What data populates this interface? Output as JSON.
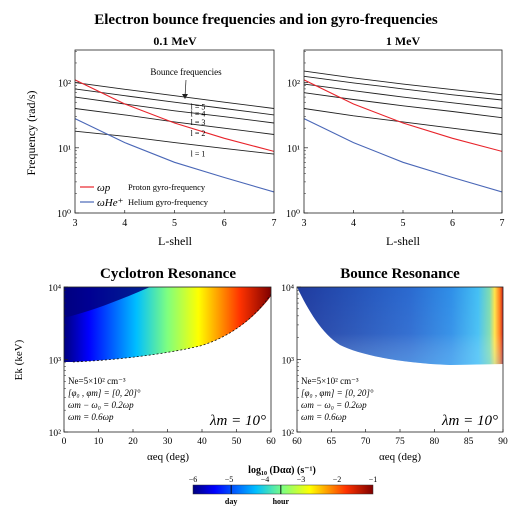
{
  "title": "Electron bounce frequencies and ion gyro-frequencies",
  "colors": {
    "bounce": "#222222",
    "proton": "#e8242b",
    "helium": "#4a67b7"
  },
  "chart_data": [
    {
      "id": "top-left",
      "type": "line",
      "title": "0.1 MeV",
      "xlabel": "L-shell",
      "ylabel": "Frequency (rad/s)",
      "xlim": [
        3,
        7
      ],
      "ylim_log10": [
        0,
        2.5
      ],
      "x_ticks": [
        "3",
        "4",
        "5",
        "6",
        "7"
      ],
      "y_ticks": [
        "10⁰",
        "10¹",
        "10²"
      ],
      "annotation": "Bounce frequencies",
      "x": [
        3,
        4,
        5,
        6,
        7
      ],
      "series": [
        {
          "name": "l = 5",
          "kind": "bounce",
          "values": [
            100,
            79,
            63,
            50,
            40
          ]
        },
        {
          "name": "l = 4",
          "kind": "bounce",
          "values": [
            80,
            63,
            50,
            40,
            32
          ]
        },
        {
          "name": "l = 3",
          "kind": "bounce",
          "values": [
            60,
            47,
            37,
            30,
            24
          ]
        },
        {
          "name": "l = 2",
          "kind": "bounce",
          "values": [
            40,
            32,
            25,
            20,
            16
          ]
        },
        {
          "name": "l = 1",
          "kind": "bounce",
          "values": [
            18,
            15,
            12,
            9.8,
            8
          ]
        },
        {
          "name": "Proton gyro-frequency",
          "symbol": "ω_p",
          "kind": "proton",
          "values": [
            110,
            47,
            24,
            14,
            8.8
          ]
        },
        {
          "name": "Helium gyro-frequency",
          "symbol": "ω_He⁺",
          "kind": "helium",
          "values": [
            28,
            12,
            6,
            3.5,
            2.1
          ]
        }
      ],
      "legend": [
        {
          "symbol": "ωp",
          "label": "Proton gyro-frequency",
          "kind": "proton"
        },
        {
          "symbol": "ωHe⁺",
          "label": "Helium gyro-frequency",
          "kind": "helium"
        }
      ]
    },
    {
      "id": "top-right",
      "type": "line",
      "title": "1 MeV",
      "xlabel": "L-shell",
      "xlim": [
        3,
        7
      ],
      "ylim_log10": [
        0,
        2.5
      ],
      "x_ticks": [
        "3",
        "4",
        "5",
        "6",
        "7"
      ],
      "y_ticks": [
        "10⁰",
        "10¹",
        "10²"
      ],
      "x": [
        3,
        4,
        5,
        6,
        7
      ],
      "series": [
        {
          "name": "l = 5",
          "kind": "bounce",
          "values": [
            150,
            118,
            95,
            78,
            65
          ]
        },
        {
          "name": "l = 4",
          "kind": "bounce",
          "values": [
            125,
            99,
            80,
            65,
            54
          ]
        },
        {
          "name": "l = 3",
          "kind": "bounce",
          "values": [
            95,
            75,
            60,
            49,
            40
          ]
        },
        {
          "name": "l = 2",
          "kind": "bounce",
          "values": [
            70,
            55,
            44,
            36,
            29
          ]
        },
        {
          "name": "l = 1",
          "kind": "bounce",
          "values": [
            40,
            31,
            25,
            20,
            16
          ]
        },
        {
          "name": "Proton gyro-frequency",
          "kind": "proton",
          "values": [
            110,
            47,
            24,
            14,
            8.8
          ]
        },
        {
          "name": "Helium gyro-frequency",
          "kind": "helium",
          "values": [
            28,
            12,
            6,
            3.5,
            2.1
          ]
        }
      ]
    },
    {
      "id": "bottom-left",
      "type": "heatmap",
      "title": "Cyclotron Resonance",
      "xlabel": "αeq (deg)",
      "ylabel": "Ek (keV)",
      "xlim": [
        0,
        90
      ],
      "ylim_log10": [
        2,
        4
      ],
      "x_ticks": [
        "0",
        "10",
        "20",
        "30",
        "40",
        "50",
        "60"
      ],
      "y_ticks": [
        "10²",
        "10³",
        "10⁴"
      ],
      "lambda_label": "λm = 10°",
      "params": [
        "Ne=5×10² cm⁻³",
        "[φ₀ , φm] = [0, 20]°",
        "ωm − ω₀ = 0.2ωp",
        "ωm = 0.6ωp"
      ]
    },
    {
      "id": "bottom-right",
      "type": "heatmap",
      "title": "Bounce Resonance",
      "xlabel": "αeq (deg)",
      "xlim": [
        60,
        90
      ],
      "ylim_log10": [
        2,
        4
      ],
      "x_ticks": [
        "60",
        "65",
        "70",
        "75",
        "80",
        "85",
        "90"
      ],
      "y_ticks": [
        "10²",
        "10³",
        "10⁴"
      ],
      "lambda_label": "λm = 10°",
      "params": [
        "Ne=5×10² cm⁻³",
        "[φ₀ , φm] = [0, 20]°",
        "ωm − ω₀ = 0.2ωp",
        "ωm = 0.6ωp"
      ]
    }
  ],
  "colorbar": {
    "label": "log₁₀ (Dαα) (s⁻¹)",
    "range": [
      -6,
      -1
    ],
    "ticks": [
      "−6",
      "−5",
      "−4",
      "−3",
      "−2",
      "−1"
    ],
    "markers": [
      {
        "label": "day",
        "value": -4.94
      },
      {
        "label": "hour",
        "value": -3.56
      }
    ]
  }
}
